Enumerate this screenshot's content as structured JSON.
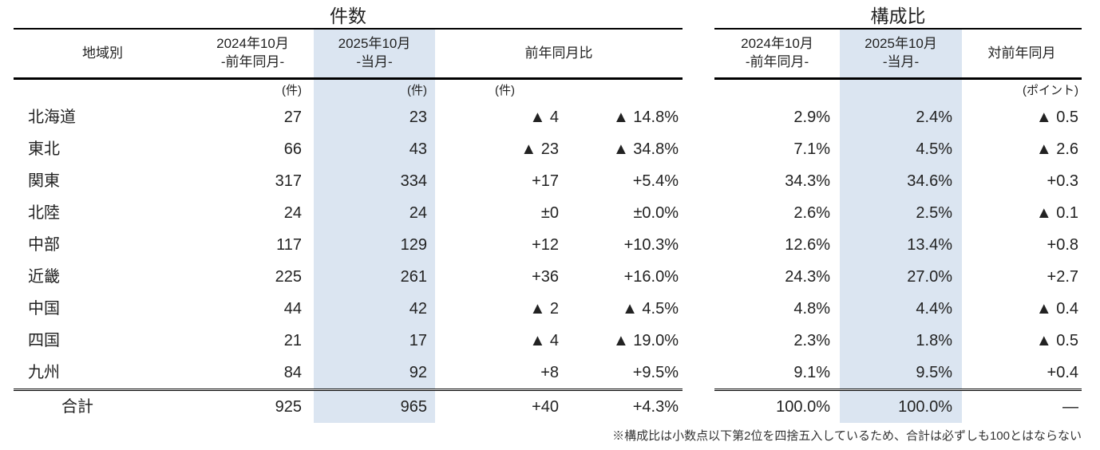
{
  "count_table": {
    "title": "件数",
    "header": {
      "region": "地域別",
      "prev_line1": "2024年10月",
      "prev_line2": "-前年同月-",
      "cur_line1": "2025年10月",
      "cur_line2": "-当月-",
      "yoy": "前年同月比"
    },
    "units": {
      "prev": "(件)",
      "cur": "(件)",
      "diff": "(件)"
    }
  },
  "share_table": {
    "title": "構成比",
    "header": {
      "prev_line1": "2024年10月",
      "prev_line2": "-前年同月-",
      "cur_line1": "2025年10月",
      "cur_line2": "-当月-",
      "yoy": "対前年同月"
    },
    "units": {
      "diff": "(ポイント)"
    }
  },
  "rows": [
    {
      "region": "北海道",
      "count_prev": "27",
      "count_cur": "23",
      "count_diff": "▲ 4",
      "count_diff_pct": "▲ 14.8%",
      "share_prev": "2.9%",
      "share_cur": "2.4%",
      "share_diff": "▲ 0.5"
    },
    {
      "region": "東北",
      "count_prev": "66",
      "count_cur": "43",
      "count_diff": "▲ 23",
      "count_diff_pct": "▲ 34.8%",
      "share_prev": "7.1%",
      "share_cur": "4.5%",
      "share_diff": "▲ 2.6"
    },
    {
      "region": "関東",
      "count_prev": "317",
      "count_cur": "334",
      "count_diff": "+17",
      "count_diff_pct": "+5.4%",
      "share_prev": "34.3%",
      "share_cur": "34.6%",
      "share_diff": "+0.3"
    },
    {
      "region": "北陸",
      "count_prev": "24",
      "count_cur": "24",
      "count_diff": "±0",
      "count_diff_pct": "±0.0%",
      "share_prev": "2.6%",
      "share_cur": "2.5%",
      "share_diff": "▲ 0.1"
    },
    {
      "region": "中部",
      "count_prev": "117",
      "count_cur": "129",
      "count_diff": "+12",
      "count_diff_pct": "+10.3%",
      "share_prev": "12.6%",
      "share_cur": "13.4%",
      "share_diff": "+0.8"
    },
    {
      "region": "近畿",
      "count_prev": "225",
      "count_cur": "261",
      "count_diff": "+36",
      "count_diff_pct": "+16.0%",
      "share_prev": "24.3%",
      "share_cur": "27.0%",
      "share_diff": "+2.7"
    },
    {
      "region": "中国",
      "count_prev": "44",
      "count_cur": "42",
      "count_diff": "▲ 2",
      "count_diff_pct": "▲ 4.5%",
      "share_prev": "4.8%",
      "share_cur": "4.4%",
      "share_diff": "▲ 0.4"
    },
    {
      "region": "四国",
      "count_prev": "21",
      "count_cur": "17",
      "count_diff": "▲ 4",
      "count_diff_pct": "▲ 19.0%",
      "share_prev": "2.3%",
      "share_cur": "1.8%",
      "share_diff": "▲ 0.5"
    },
    {
      "region": "九州",
      "count_prev": "84",
      "count_cur": "92",
      "count_diff": "+8",
      "count_diff_pct": "+9.5%",
      "share_prev": "9.1%",
      "share_cur": "9.5%",
      "share_diff": "+0.4"
    }
  ],
  "total": {
    "label": "合計",
    "count_prev": "925",
    "count_cur": "965",
    "count_diff": "+40",
    "count_diff_pct": "+4.3%",
    "share_prev": "100.0%",
    "share_cur": "100.0%",
    "share_diff": "—"
  },
  "footnote": "※構成比は小数点以下第2位を四捨五入しているため、合計は必ずしも100とはならない",
  "colors": {
    "highlight": "#dbe5f1",
    "line": "#000000",
    "text": "#222222"
  }
}
